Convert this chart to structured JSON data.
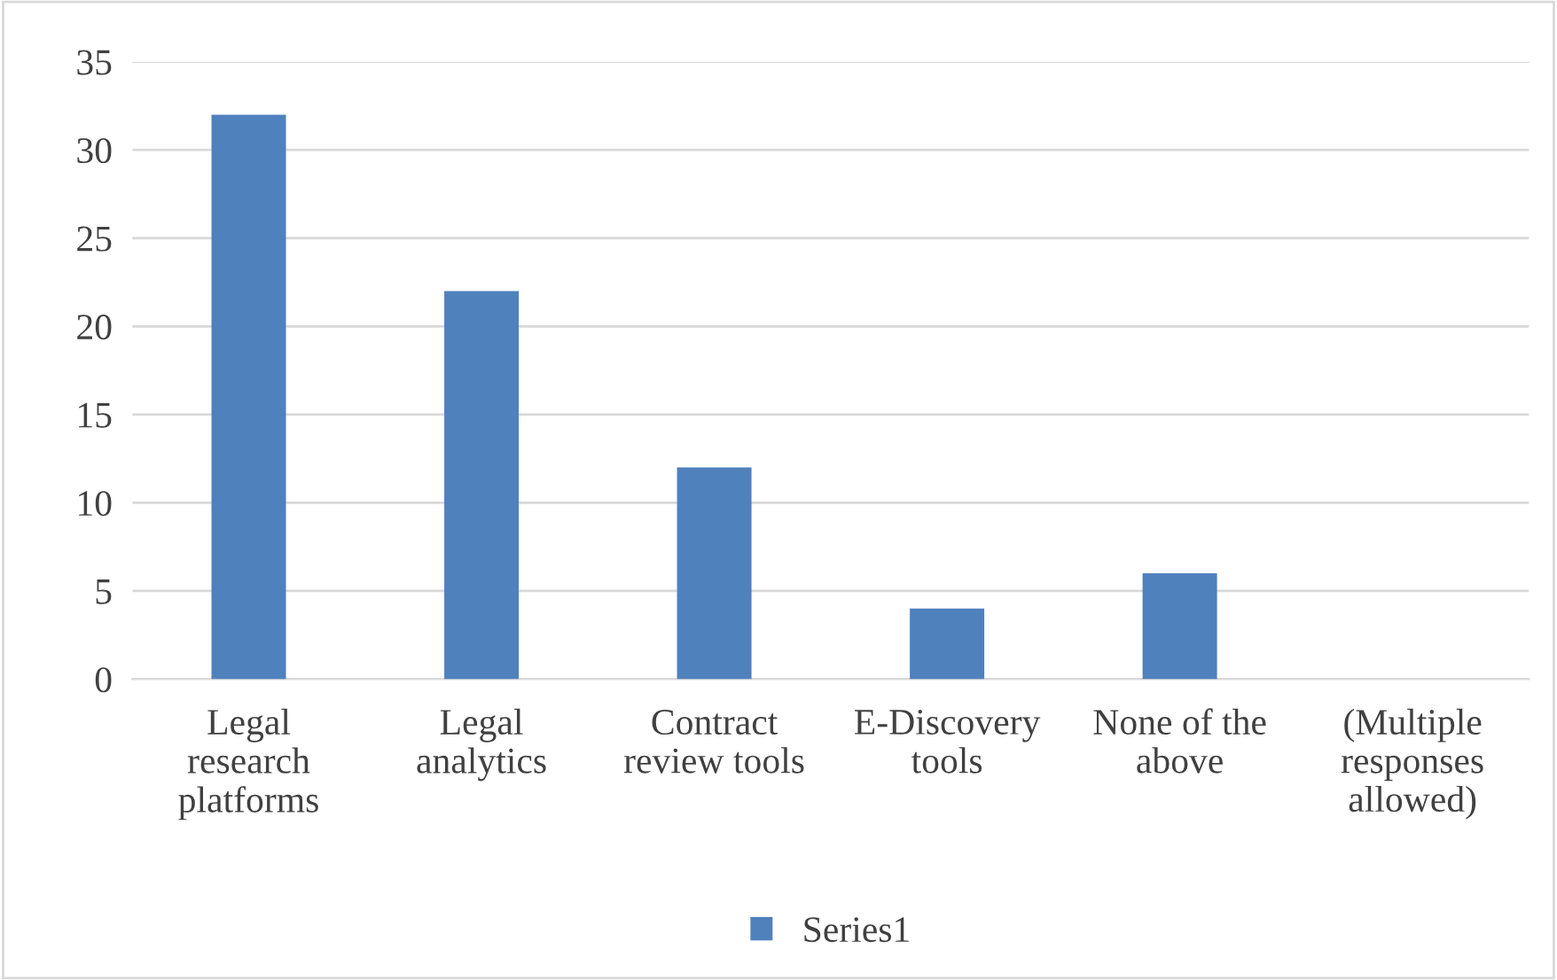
{
  "chart_data": {
    "type": "bar",
    "categories": [
      "Legal research platforms",
      "Legal analytics",
      "Contract review tools",
      "E-Discovery tools",
      "None of the above",
      "(Multiple responses allowed)"
    ],
    "series": [
      {
        "name": "Series1",
        "color": "#4f81bd",
        "values": [
          32,
          22,
          12,
          4,
          6,
          null
        ]
      }
    ],
    "ylim": [
      0,
      35
    ],
    "yticks": [
      0,
      5,
      10,
      15,
      20,
      25,
      30,
      35
    ],
    "grid": "y",
    "legend": "bottom"
  }
}
